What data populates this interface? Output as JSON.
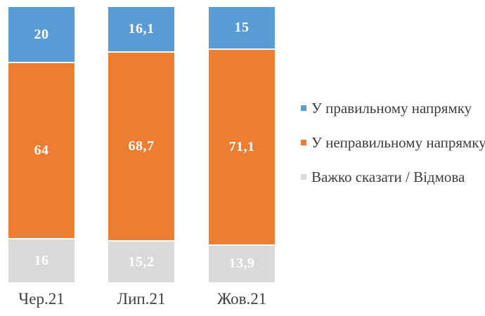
{
  "chart_data": {
    "type": "bar",
    "variant": "stacked-100-column",
    "title": "",
    "xlabel": "",
    "ylabel": "",
    "ylim": [
      0,
      100
    ],
    "grid": false,
    "axis_lines": false,
    "legend_position": "right",
    "decimal_separator": ",",
    "categories": [
      "Чер.21",
      "Лип.21",
      "Жов.21"
    ],
    "series": [
      {
        "name": "У правильному напрямку",
        "color": "#5B9BD5",
        "values": [
          20,
          16.1,
          15
        ],
        "display_labels": [
          "20",
          "16,1",
          "15"
        ]
      },
      {
        "name": "У неправильному напрямку",
        "color": "#ED7D31",
        "values": [
          64,
          68.7,
          71.1
        ],
        "display_labels": [
          "64",
          "68,7",
          "71,1"
        ]
      },
      {
        "name": "Важко сказати / Відмова",
        "color": "#D9D9D9",
        "values": [
          16,
          15.2,
          13.9
        ],
        "display_labels": [
          "16",
          "15,2",
          "13,9"
        ]
      }
    ],
    "value_label_color": "#FFFFFF",
    "text_color": "#3F3F3F"
  }
}
